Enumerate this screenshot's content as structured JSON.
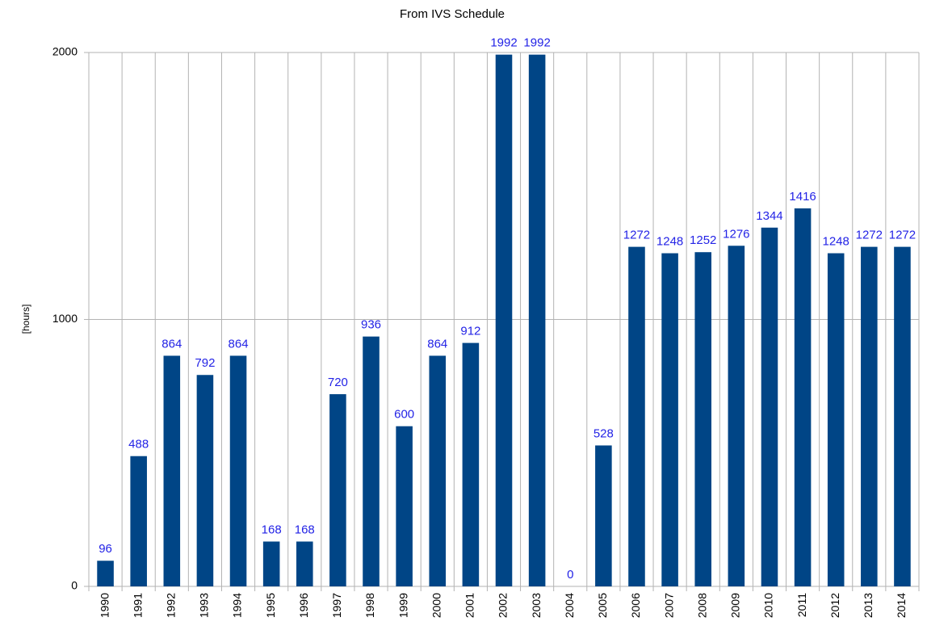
{
  "chart_data": {
    "type": "bar",
    "title": "From IVS Schedule",
    "y_label": "[hours]",
    "categories": [
      "1990",
      "1991",
      "1992",
      "1993",
      "1994",
      "1995",
      "1996",
      "1997",
      "1998",
      "1999",
      "2000",
      "2001",
      "2002",
      "2003",
      "2004",
      "2005",
      "2006",
      "2007",
      "2008",
      "2009",
      "2010",
      "2011",
      "2012",
      "2013",
      "2014"
    ],
    "values": [
      96,
      488,
      864,
      792,
      864,
      168,
      168,
      720,
      936,
      600,
      864,
      912,
      1992,
      1992,
      0,
      528,
      1272,
      1248,
      1252,
      1276,
      1344,
      1416,
      1248,
      1272,
      1272
    ],
    "color": "#004586",
    "label_color": "#2323e6",
    "ylim": [
      0,
      2000
    ],
    "yticks": [
      0,
      1000,
      2000
    ],
    "grid": true
  }
}
